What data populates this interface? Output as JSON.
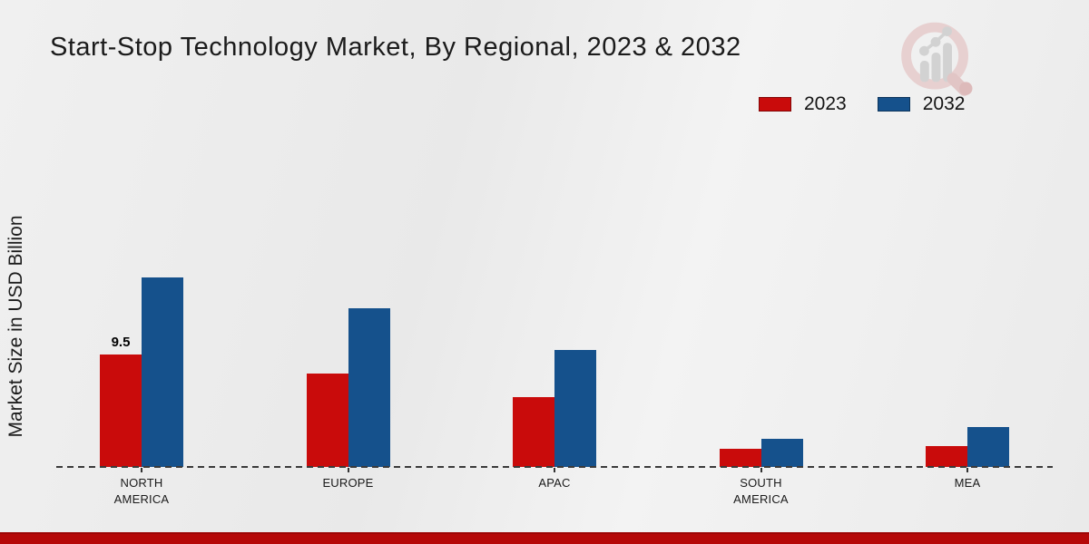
{
  "title": "Start-Stop Technology Market, By Regional, 2023 & 2032",
  "ylabel": "Market Size in USD Billion",
  "legend": {
    "position": "top-right",
    "items": [
      {
        "label": "2023",
        "color": "#c90b0b"
      },
      {
        "label": "2032",
        "color": "#15518c"
      }
    ]
  },
  "watermark_icon": "market-research-magnifier-chart-logo",
  "footer": {
    "band_color": "#b50808"
  },
  "chart_data": {
    "type": "bar",
    "title": "Start-Stop Technology Market, By Regional, 2023 & 2032",
    "xlabel": "",
    "ylabel": "Market Size in USD Billion",
    "categories": [
      "NORTH AMERICA",
      "EUROPE",
      "APAC",
      "SOUTH AMERICA",
      "MEA"
    ],
    "series": [
      {
        "name": "2023",
        "color": "#c90b0b",
        "values": [
          9.5,
          7.9,
          5.9,
          1.5,
          1.75
        ]
      },
      {
        "name": "2032",
        "color": "#15518c",
        "values": [
          16.0,
          13.4,
          9.9,
          2.4,
          3.4
        ]
      }
    ],
    "ylim": [
      0,
      17.6
    ],
    "grid": false,
    "legend_position": "top-right",
    "baseline_style": "dashed",
    "axis_numbers_shown": false,
    "data_labels": [
      {
        "category": "NORTH AMERICA",
        "series": "2023",
        "text": "9.5"
      }
    ]
  }
}
